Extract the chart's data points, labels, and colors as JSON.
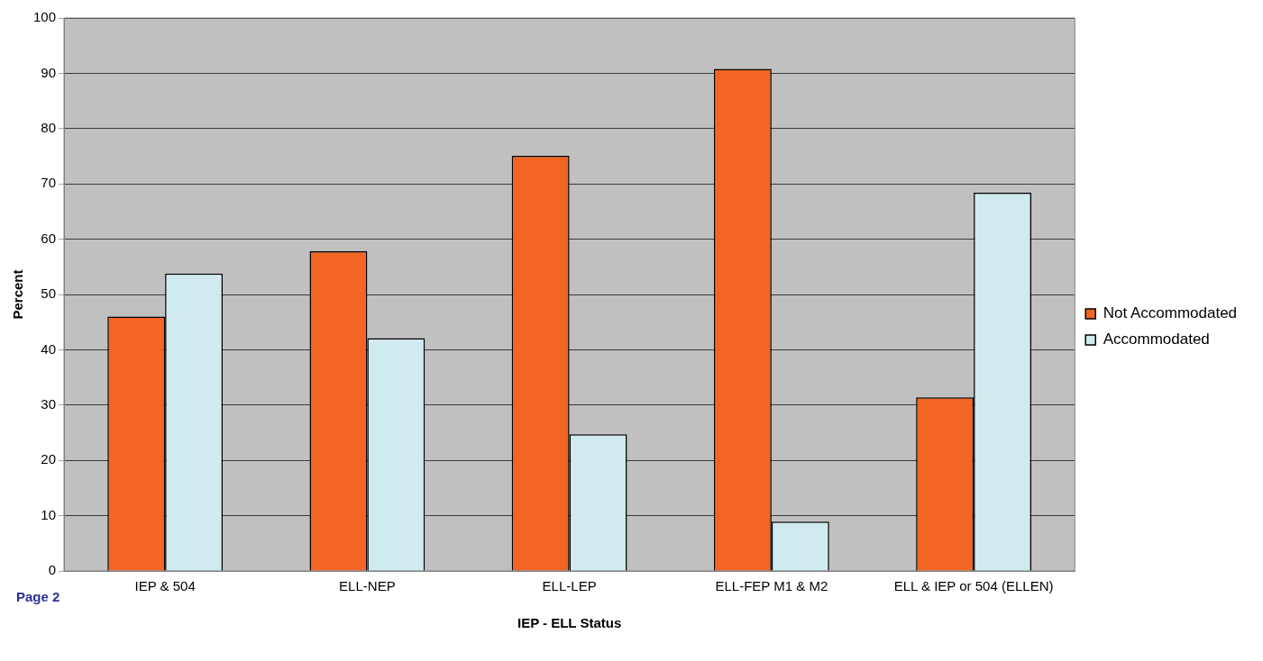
{
  "chart_data": {
    "type": "bar",
    "xlabel": "IEP - ELL Status",
    "ylabel": "Percent",
    "categories": [
      "IEP & 504",
      "ELL-NEP",
      "ELL-LEP",
      "ELL-FEP M1 & M2",
      "ELL & IEP or 504 (ELLEN)"
    ],
    "series": [
      {
        "name": "Not Accommodated",
        "color": "#f26522",
        "values": [
          46.0,
          57.8,
          75.1,
          90.8,
          31.4
        ]
      },
      {
        "name": "Accommodated",
        "color": "#d0ebef",
        "values": [
          53.8,
          42.1,
          24.7,
          8.9,
          68.4
        ]
      }
    ],
    "ylim": [
      0,
      100
    ],
    "yticks": [
      0,
      10,
      20,
      30,
      40,
      50,
      60,
      70,
      80,
      90,
      100
    ],
    "grid": "y",
    "legend": "right",
    "annotations": [
      "Page 2"
    ]
  }
}
